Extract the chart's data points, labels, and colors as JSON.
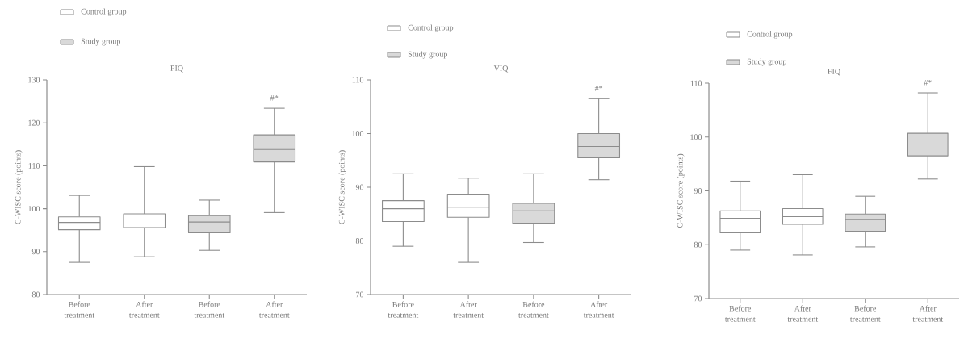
{
  "chart_data": [
    {
      "type": "box",
      "title": "PIQ",
      "ylabel": "C-WISC score (points)",
      "categories": [
        "Before treatment",
        "After treatment",
        "Before treatment",
        "After treatment"
      ],
      "ylim": [
        80,
        130
      ],
      "yticks": [
        80,
        90,
        100,
        110,
        120,
        130
      ],
      "legend": "top left",
      "annotations": [
        "#*"
      ],
      "series": [
        {
          "name": "Control group",
          "color": "#ffffff",
          "boxes": [
            {
              "low": 87.5,
              "q1": 95.1,
              "median": 96.8,
              "q3": 98.1,
              "high": 103.1
            },
            {
              "low": 88.8,
              "q1": 95.6,
              "median": 97.4,
              "q3": 98.8,
              "high": 109.8
            },
            null,
            null
          ]
        },
        {
          "name": "Study group",
          "color": "#d9d9d9",
          "boxes": [
            null,
            null,
            {
              "low": 90.3,
              "q1": 94.4,
              "median": 96.9,
              "q3": 98.4,
              "high": 102
            },
            {
              "low": 99.1,
              "q1": 110.9,
              "median": 113.8,
              "q3": 117.2,
              "high": 123.4
            }
          ]
        }
      ]
    },
    {
      "type": "box",
      "title": "VIQ",
      "ylabel": "C-WISC score (points)",
      "categories": [
        "Before treatment",
        "After treatment",
        "Before treatment",
        "After treatment"
      ],
      "ylim": [
        70,
        110
      ],
      "yticks": [
        70,
        80,
        90,
        100,
        110
      ],
      "legend": "top left",
      "annotations": [
        "#*"
      ],
      "series": [
        {
          "name": "Control group",
          "color": "#ffffff",
          "boxes": [
            {
              "low": 79,
              "q1": 83.6,
              "median": 86,
              "q3": 87.5,
              "high": 92.5
            },
            {
              "low": 76,
              "q1": 84.4,
              "median": 86.3,
              "q3": 88.7,
              "high": 91.7
            },
            null,
            null
          ]
        },
        {
          "name": "Study group",
          "color": "#d9d9d9",
          "boxes": [
            null,
            null,
            {
              "low": 79.7,
              "q1": 83.3,
              "median": 85.6,
              "q3": 87,
              "high": 92.5
            },
            {
              "low": 91.4,
              "q1": 95.5,
              "median": 97.6,
              "q3": 100,
              "high": 106.5
            }
          ]
        }
      ]
    },
    {
      "type": "box",
      "title": "FIQ",
      "ylabel": "C-WISC score (points)",
      "categories": [
        "Before treatment",
        "After treatment",
        "Before treatment",
        "After treatment"
      ],
      "ylim": [
        70,
        110
      ],
      "yticks": [
        70,
        80,
        90,
        100,
        110
      ],
      "legend": "top left",
      "annotations": [
        "#*"
      ],
      "series": [
        {
          "name": "Control group",
          "color": "#ffffff",
          "boxes": [
            {
              "low": 79,
              "q1": 82.2,
              "median": 84.9,
              "q3": 86.3,
              "high": 91.8
            },
            {
              "low": 78.1,
              "q1": 83.8,
              "median": 85.2,
              "q3": 86.7,
              "high": 93
            },
            null,
            null
          ]
        },
        {
          "name": "Study group",
          "color": "#d9d9d9",
          "boxes": [
            null,
            null,
            {
              "low": 79.6,
              "q1": 82.5,
              "median": 84.7,
              "q3": 85.7,
              "high": 89
            },
            {
              "low": 92.2,
              "q1": 96.5,
              "median": 98.7,
              "q3": 100.7,
              "high": 108.2
            }
          ]
        }
      ]
    }
  ]
}
